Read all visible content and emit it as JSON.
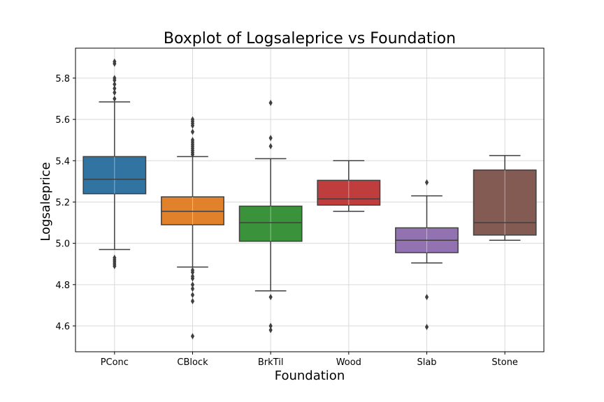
{
  "chart_data": {
    "type": "box",
    "title": "Boxplot of Logsaleprice vs Foundation",
    "xlabel": "Foundation",
    "ylabel": "Logsaleprice",
    "ylim": [
      4.475,
      5.945
    ],
    "yticks": [
      4.6,
      4.8,
      5.0,
      5.2,
      5.4,
      5.6,
      5.8
    ],
    "grid": true,
    "categories": [
      "PConc",
      "CBlock",
      "BrkTil",
      "Wood",
      "Slab",
      "Stone"
    ],
    "colors": [
      "#3274a1",
      "#e1812c",
      "#3a923a",
      "#c03d3e",
      "#9372b2",
      "#845b53"
    ],
    "boxes": [
      {
        "category": "PConc",
        "whisker_low": 4.97,
        "q1": 5.24,
        "median": 5.31,
        "q3": 5.42,
        "whisker_high": 5.685,
        "outliers": [
          4.89,
          4.9,
          4.91,
          4.92,
          4.93,
          5.7,
          5.73,
          5.75,
          5.77,
          5.79,
          5.8,
          5.87,
          5.88
        ]
      },
      {
        "category": "CBlock",
        "whisker_low": 4.885,
        "q1": 5.09,
        "median": 5.155,
        "q3": 5.225,
        "whisker_high": 5.42,
        "outliers": [
          4.55,
          4.72,
          4.75,
          4.78,
          4.8,
          4.83,
          4.84,
          4.86,
          4.87,
          5.43,
          5.44,
          5.45,
          5.46,
          5.47,
          5.48,
          5.49,
          5.5,
          5.54,
          5.57,
          5.58,
          5.59,
          5.6
        ]
      },
      {
        "category": "BrkTil",
        "whisker_low": 4.77,
        "q1": 5.01,
        "median": 5.1,
        "q3": 5.18,
        "whisker_high": 5.41,
        "outliers": [
          4.58,
          4.6,
          4.74,
          5.47,
          5.51,
          5.68
        ]
      },
      {
        "category": "Wood",
        "whisker_low": 5.155,
        "q1": 5.185,
        "median": 5.215,
        "q3": 5.305,
        "whisker_high": 5.4,
        "outliers": []
      },
      {
        "category": "Slab",
        "whisker_low": 4.905,
        "q1": 4.955,
        "median": 5.015,
        "q3": 5.075,
        "whisker_high": 5.23,
        "outliers": [
          4.595,
          4.74,
          5.295
        ]
      },
      {
        "category": "Stone",
        "whisker_low": 5.015,
        "q1": 5.04,
        "median": 5.1,
        "q3": 5.355,
        "whisker_high": 5.425,
        "outliers": []
      }
    ]
  }
}
